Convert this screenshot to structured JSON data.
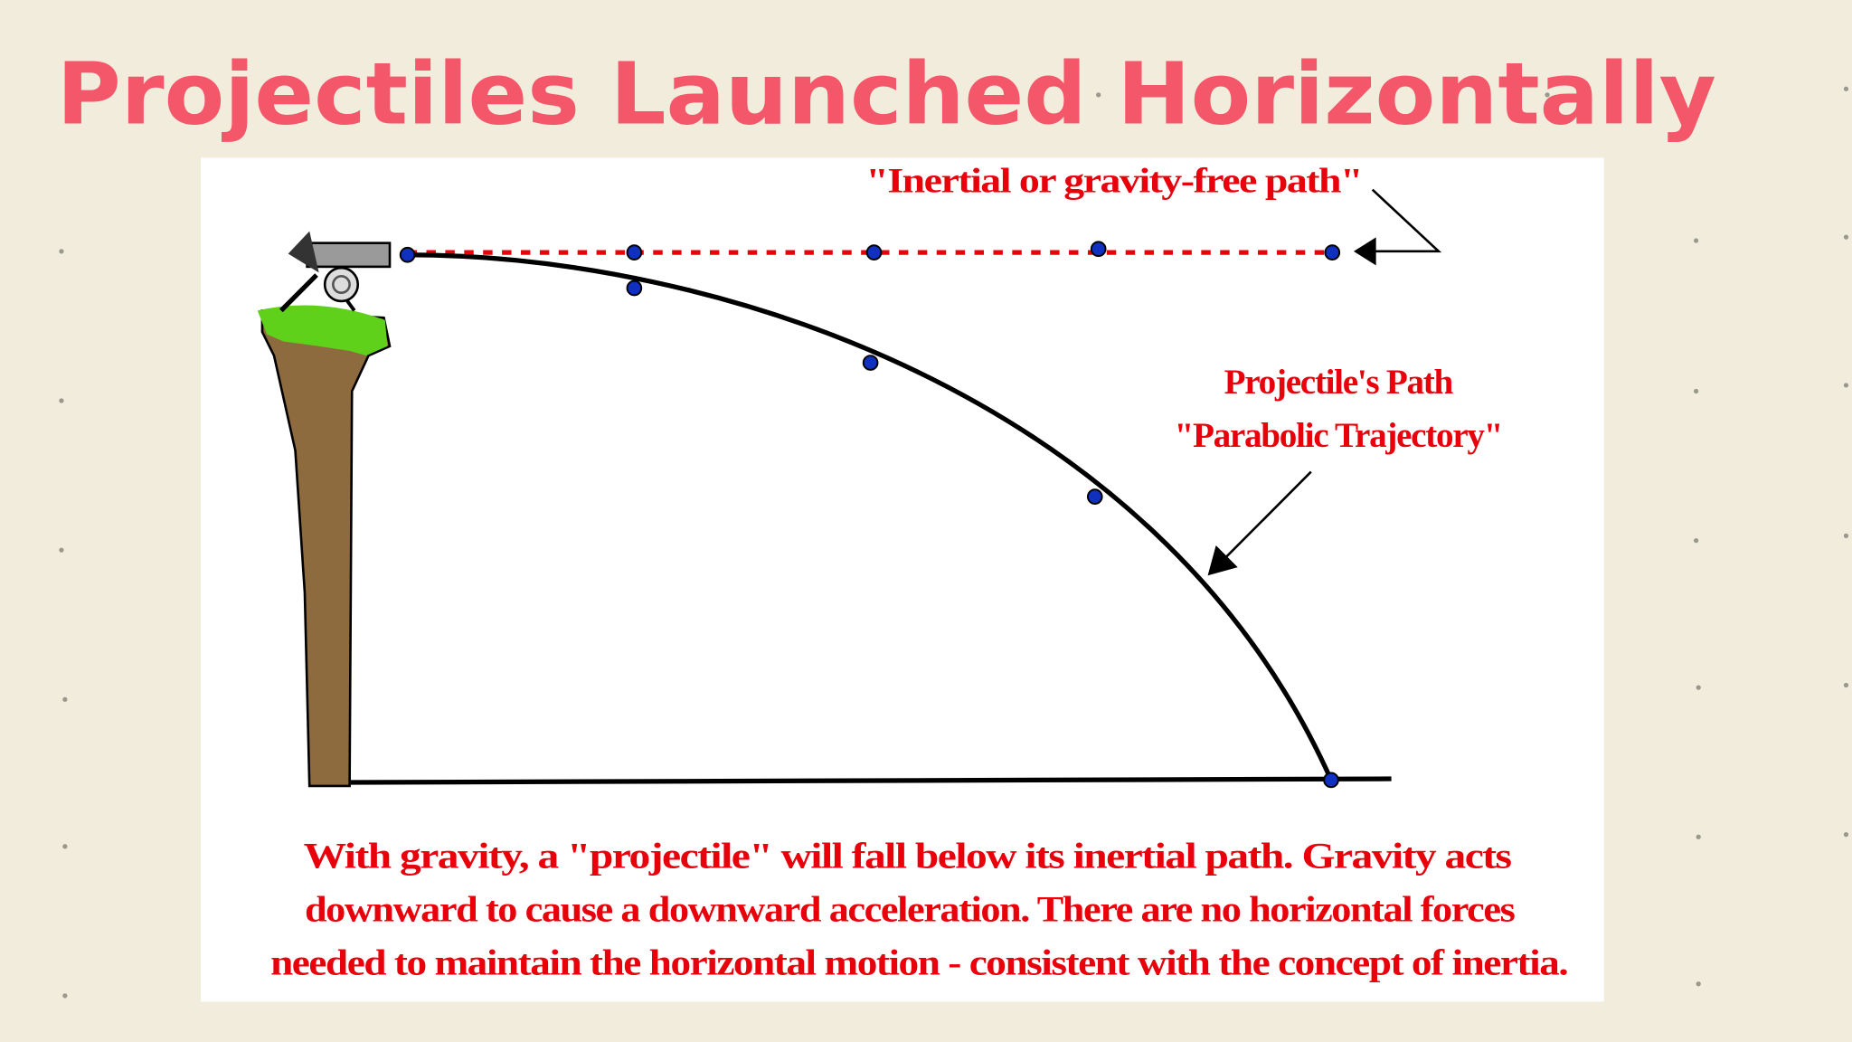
{
  "header": {
    "title": "Projectiles Launched Horizontally"
  },
  "diagram": {
    "inertial_label": "\"Inertial or gravity-free path\"",
    "path_label": [
      "Projectile's Path",
      "\"Parabolic Trajectory\""
    ],
    "caption": [
      "With gravity, a \"projectile\" will fall below its inertial path.  Gravity acts",
      "downward to cause a downward acceleration.  There are no horizontal forces",
      "needed to maintain the horizontal motion - consistent with the concept of inertia."
    ]
  }
}
